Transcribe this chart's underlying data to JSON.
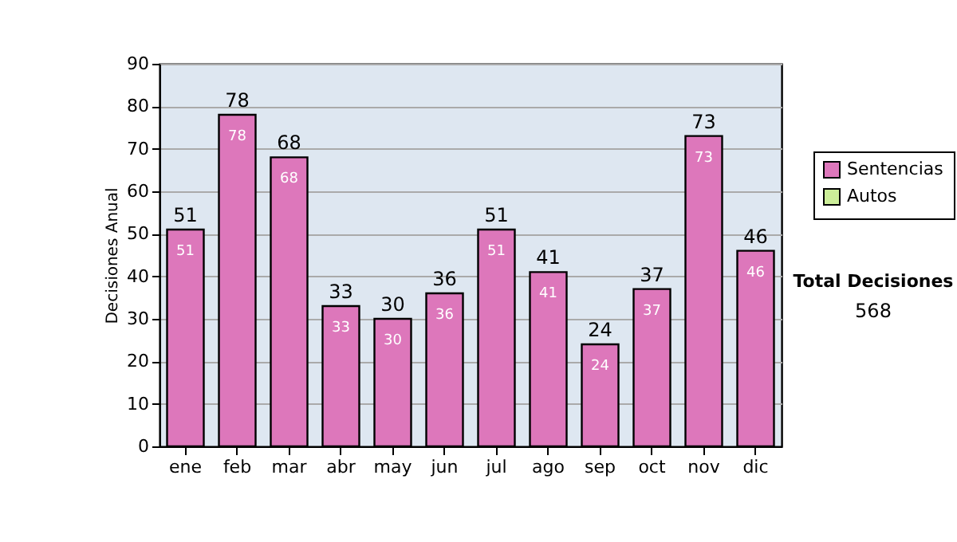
{
  "chart_data": {
    "type": "bar",
    "ylabel": "Decisiones Anual",
    "categories": [
      "ene",
      "feb",
      "mar",
      "abr",
      "may",
      "jun",
      "jul",
      "ago",
      "sep",
      "oct",
      "nov",
      "dic"
    ],
    "series": [
      {
        "name": "Sentencias",
        "color": "#dd77bb",
        "values": [
          51,
          78,
          68,
          33,
          30,
          36,
          51,
          41,
          24,
          37,
          73,
          46
        ],
        "value_labels": [
          "51",
          "78",
          "68",
          "33",
          "30",
          "36",
          "51",
          "41",
          "24",
          "37",
          "73",
          "46"
        ]
      },
      {
        "name": "Autos",
        "color": "#ccee99",
        "values": [
          null,
          null,
          null,
          null,
          null,
          null,
          null,
          null,
          null,
          null,
          null,
          null
        ]
      }
    ],
    "stacked": true,
    "totals": [
      "51",
      "78",
      "68",
      "33",
      "30",
      "36",
      "51",
      "41",
      "24",
      "37",
      "73",
      "46"
    ],
    "ylim": [
      0,
      90
    ],
    "yticks": [
      0,
      10,
      20,
      30,
      40,
      50,
      60,
      70,
      80,
      90
    ],
    "grid": "y",
    "legend": "right",
    "annotations": [
      "Total Decisiones",
      "568"
    ]
  }
}
